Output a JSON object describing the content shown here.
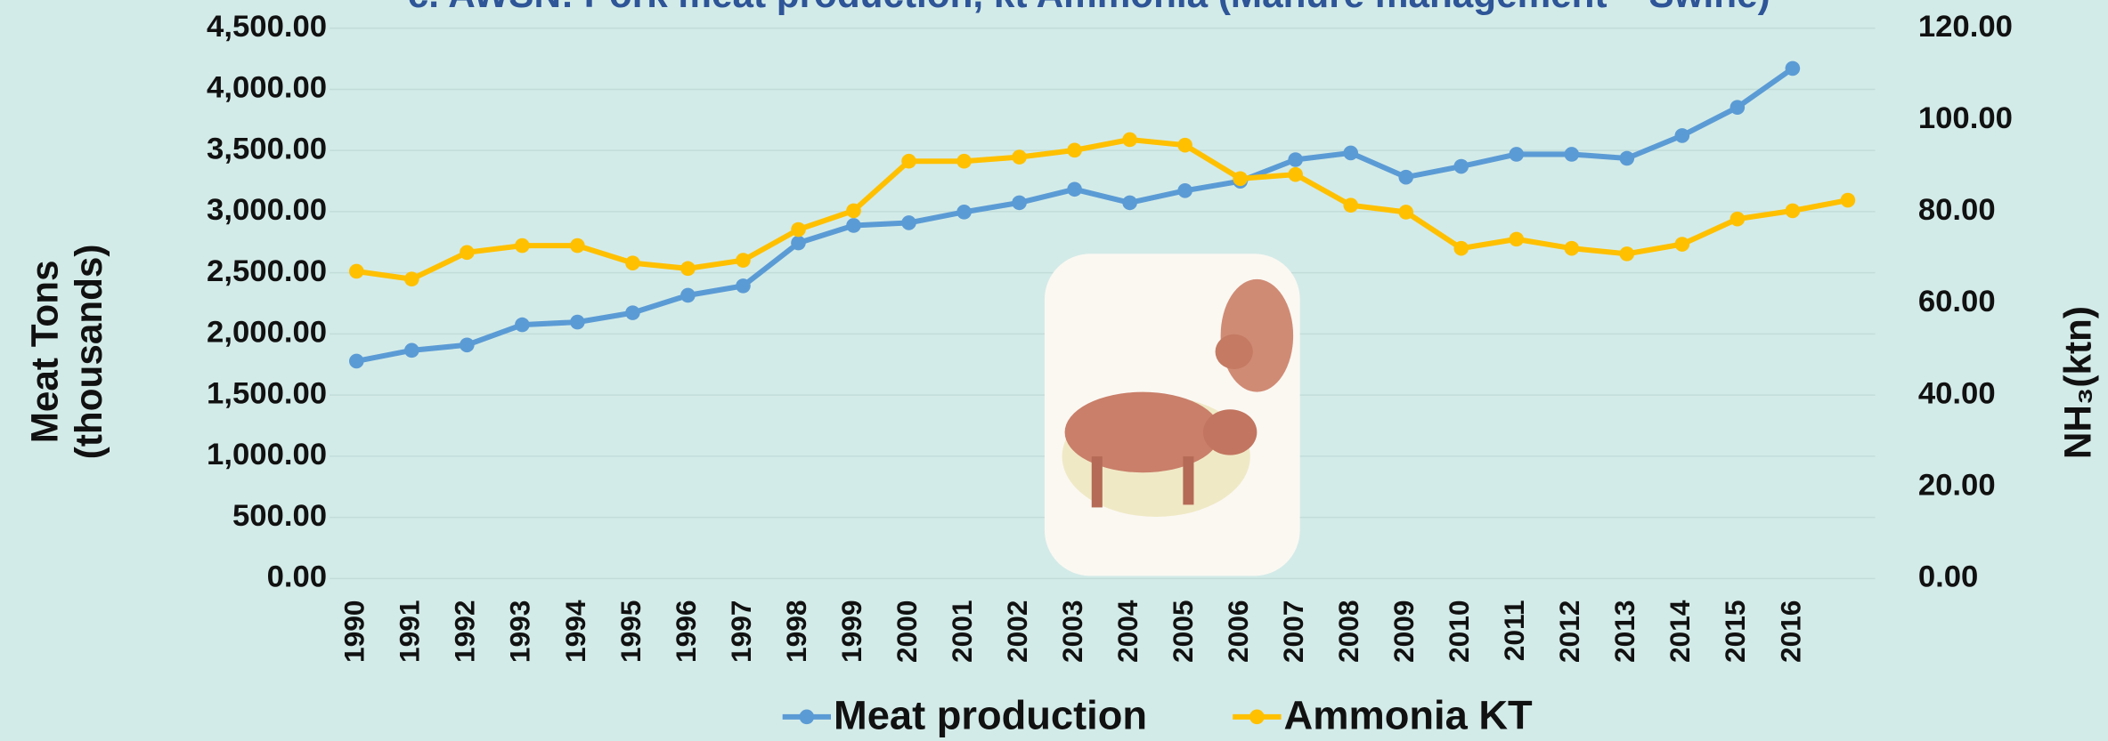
{
  "chart_data": {
    "type": "line",
    "title": "c. AWSN: Pork meat production, kt Ammonia (Manure management – Swine)",
    "y_label": [
      "Meat Tons",
      "(thousands)"
    ],
    "y2_label": "NH₃(ktn)",
    "categories": [
      "1990",
      "1991",
      "1992",
      "1993",
      "1994",
      "1995",
      "1996",
      "1997",
      "1998",
      "1999",
      "2000",
      "2001",
      "2002",
      "2003",
      "2004",
      "2005",
      "2006",
      "2007",
      "2008",
      "2009",
      "2010",
      "2011",
      "2012",
      "2013",
      "2014",
      "2015",
      "2016",
      null
    ],
    "series": [
      {
        "name": "Meat production",
        "color": "#5b9bd5",
        "values": [
          1778,
          1866,
          1910,
          2075,
          2097,
          2173,
          2316,
          2393,
          2744,
          2887,
          2909,
          2997,
          3073,
          3183,
          3073,
          3172,
          3249,
          3425,
          3480,
          3282,
          3370,
          3469,
          3469,
          3436,
          3622,
          3853,
          4171,
          null
        ]
      },
      {
        "name": "Ammonia KT",
        "color": "#ffc000",
        "axis": "y2",
        "values": [
          67.0,
          65.3,
          71.1,
          72.6,
          72.6,
          68.8,
          67.6,
          69.4,
          76.1,
          80.2,
          91.0,
          91.0,
          91.9,
          93.4,
          95.7,
          94.5,
          87.2,
          88.1,
          81.4,
          79.9,
          72.0,
          74.0,
          72.0,
          70.8,
          72.9,
          78.4,
          80.2,
          82.5
        ]
      }
    ],
    "ylim": [
      0,
      4500
    ],
    "yticks": [
      {
        "value": 0,
        "label": "0.00"
      },
      {
        "value": 500,
        "label": "500.00"
      },
      {
        "value": 1000,
        "label": "1,000.00"
      },
      {
        "value": 1500,
        "label": "1,500.00"
      },
      {
        "value": 2000,
        "label": "2,000.00"
      },
      {
        "value": 2500,
        "label": "2,500.00"
      },
      {
        "value": 3000,
        "label": "3,000.00"
      },
      {
        "value": 3500,
        "label": "3,500.00"
      },
      {
        "value": 4000,
        "label": "4,000.00"
      },
      {
        "value": 4500,
        "label": "4,500.00"
      }
    ],
    "y2lim": [
      0,
      120
    ],
    "y2ticks": [
      {
        "value": 0,
        "label": "0.00"
      },
      {
        "value": 20,
        "label": "20.00"
      },
      {
        "value": 40,
        "label": "40.00"
      },
      {
        "value": 60,
        "label": "60.00"
      },
      {
        "value": 80,
        "label": "80.00"
      },
      {
        "value": 100,
        "label": "100.00"
      },
      {
        "value": 120,
        "label": "120.00"
      }
    ],
    "grid": true,
    "legend": "bottom"
  }
}
